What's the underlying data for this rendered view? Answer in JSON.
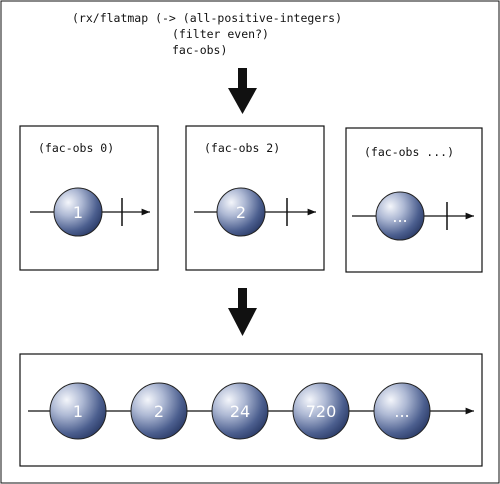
{
  "code": {
    "line1": "(rx/flatmap (-> (all-positive-integers)",
    "line2": "(filter even?)",
    "line3": "fac-obs)"
  },
  "panels": [
    {
      "label": "(fac-obs 0)",
      "marble": "1"
    },
    {
      "label": "(fac-obs 2)",
      "marble": "2"
    },
    {
      "label": "(fac-obs ...)",
      "marble": "..."
    }
  ],
  "result": {
    "marbles": [
      "1",
      "2",
      "24",
      "720",
      "..."
    ]
  },
  "colors": {
    "border": "#111111",
    "marble_light": "#eef1f8",
    "marble_dark": "#2c3d6e"
  }
}
